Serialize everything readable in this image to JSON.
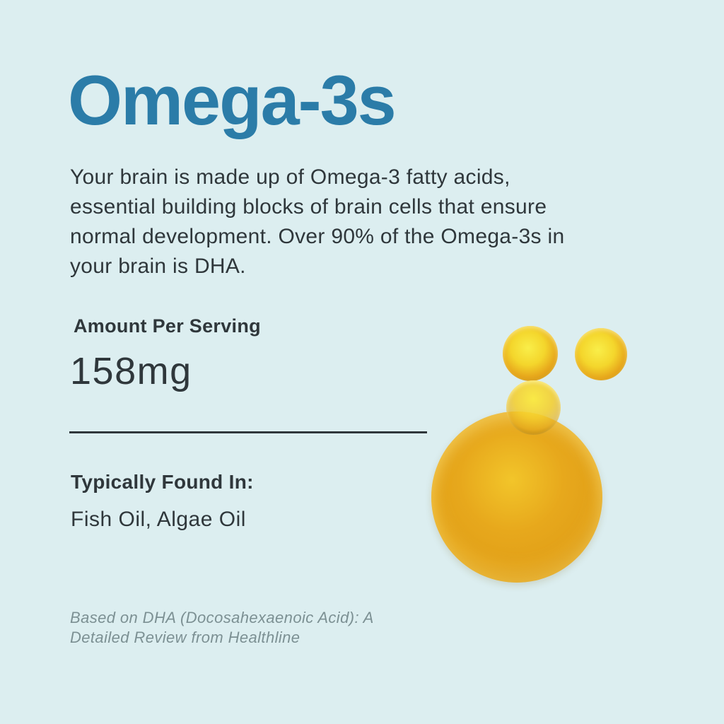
{
  "theme": {
    "colors": {
      "bg": "#dceef0",
      "title": "#2b7ca8",
      "text": "#2f373b",
      "muted": "#7c9093",
      "divider": "#2f373b",
      "gold-rim": "#7a5a0b",
      "gold-mid": "#e7a81c",
      "gold-bright": "#f2c52a",
      "gold-glow": "#f9ee49"
    }
  },
  "title": {
    "text": "Omega-3s"
  },
  "intro": {
    "lines": [
      "Your brain is made up of Omega-3 fatty acids,",
      "essential building blocks of brain cells that ensure",
      "normal development. Over 90% of the Omega-3s in",
      "your brain is DHA."
    ]
  },
  "serving": {
    "label": "Amount Per Serving",
    "amount": "158mg"
  },
  "found_in": {
    "label": "Typically Found In:",
    "value": "Fish Oil, Algae Oil"
  },
  "footnote": {
    "lines": [
      "Based on DHA (Docosahexaenoic Acid): A",
      "Detailed Review from Healthline"
    ]
  },
  "illustration": {
    "name": "golden-oil-droplets",
    "droplets": [
      "large",
      "medium",
      "small",
      "small"
    ]
  }
}
